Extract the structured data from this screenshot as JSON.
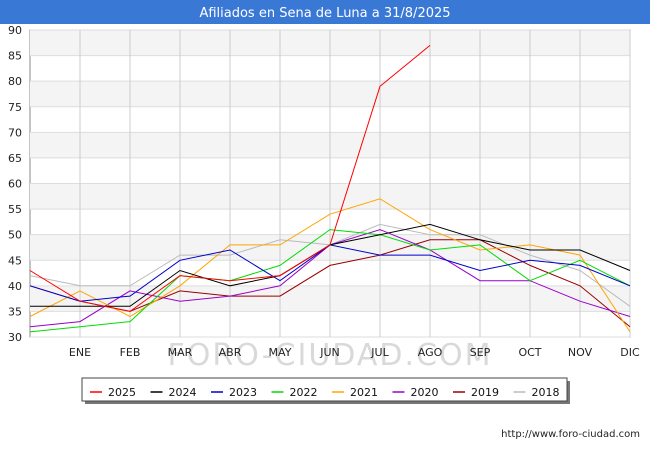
{
  "chart_data": {
    "type": "line",
    "title": "Afiliados en Sena de Luna a 31/8/2025",
    "categories": [
      "",
      "ENE",
      "FEB",
      "MAR",
      "ABR",
      "MAY",
      "JUN",
      "JUL",
      "AGO",
      "SEP",
      "OCT",
      "NOV",
      "DIC"
    ],
    "ylim": [
      30,
      90
    ],
    "yticks": [
      30,
      35,
      40,
      45,
      50,
      55,
      60,
      65,
      70,
      75,
      80,
      85,
      90
    ],
    "grid": true,
    "legend_position": "bottom",
    "series": [
      {
        "name": "2025",
        "color": "#ff0000",
        "values": [
          43,
          37,
          35,
          42,
          41,
          42,
          48,
          79,
          87,
          null,
          null,
          null,
          null
        ]
      },
      {
        "name": "2024",
        "color": "#000000",
        "values": [
          36,
          36,
          36,
          43,
          40,
          42,
          48,
          50,
          52,
          49,
          47,
          47,
          43
        ]
      },
      {
        "name": "2023",
        "color": "#0000cc",
        "values": [
          40,
          37,
          38,
          45,
          47,
          41,
          48,
          46,
          46,
          43,
          45,
          44,
          40
        ]
      },
      {
        "name": "2022",
        "color": "#00dd00",
        "values": [
          31,
          32,
          33,
          42,
          41,
          44,
          51,
          50,
          47,
          48,
          41,
          45,
          40
        ]
      },
      {
        "name": "2021",
        "color": "#ffa500",
        "values": [
          34,
          39,
          34,
          40,
          48,
          48,
          54,
          57,
          51,
          47,
          48,
          46,
          31
        ]
      },
      {
        "name": "2020",
        "color": "#9900cc",
        "values": [
          32,
          33,
          39,
          37,
          38,
          40,
          48,
          51,
          47,
          41,
          41,
          37,
          34
        ]
      },
      {
        "name": "2019",
        "color": "#990000",
        "values": [
          40,
          37,
          35,
          39,
          38,
          38,
          44,
          46,
          49,
          49,
          44,
          40,
          32
        ]
      },
      {
        "name": "2018",
        "color": "#bbbbbb",
        "values": [
          42,
          40,
          40,
          46,
          46,
          49,
          48,
          52,
          50,
          50,
          46,
          43,
          36
        ]
      }
    ]
  },
  "footer": {
    "url": "http://www.foro-ciudad.com"
  },
  "watermark": "FORO-CIUDAD.COM"
}
